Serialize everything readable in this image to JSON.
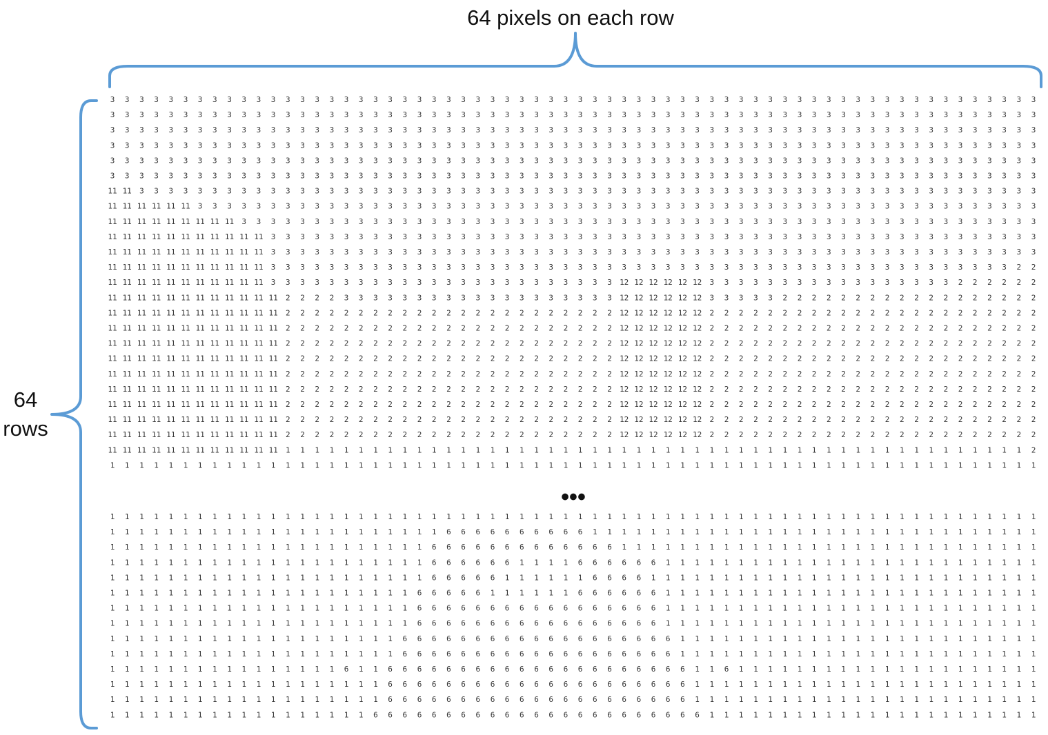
{
  "labels": {
    "top": "64 pixels on each row",
    "left_line1": "64",
    "left_line2": "rows",
    "ellipsis": "•••"
  },
  "colors": {
    "brace": "#5b9bd5",
    "text": "#111111",
    "digits": "#333333"
  },
  "matrix": {
    "top_rows": [
      "3 3 3 3 3 3 3 3 3 3 3 3 3 3 3 3 3 3 3 3 3 3 3 3 3 3 3 3 3 3 3 3 3 3 3 3 3 3 3 3 3 3 3 3 3 3 3 3 3 3 3 3 3 3 3 3 3 3 3 3 3 3 3 3",
      "3 3 3 3 3 3 3 3 3 3 3 3 3 3 3 3 3 3 3 3 3 3 3 3 3 3 3 3 3 3 3 3 3 3 3 3 3 3 3 3 3 3 3 3 3 3 3 3 3 3 3 3 3 3 3 3 3 3 3 3 3 3 3 3",
      "3 3 3 3 3 3 3 3 3 3 3 3 3 3 3 3 3 3 3 3 3 3 3 3 3 3 3 3 3 3 3 3 3 3 3 3 3 3 3 3 3 3 3 3 3 3 3 3 3 3 3 3 3 3 3 3 3 3 3 3 3 3 3 3",
      "3 3 3 3 3 3 3 3 3 3 3 3 3 3 3 3 3 3 3 3 3 3 3 3 3 3 3 3 3 3 3 3 3 3 3 3 3 3 3 3 3 3 3 3 3 3 3 3 3 3 3 3 3 3 3 3 3 3 3 3 3 3 3 3",
      "3 3 3 3 3 3 3 3 3 3 3 3 3 3 3 3 3 3 3 3 3 3 3 3 3 3 3 3 3 3 3 3 3 3 3 3 3 3 3 3 3 3 3 3 3 3 3 3 3 3 3 3 3 3 3 3 3 3 3 3 3 3 3 3",
      "3 3 3 3 3 3 3 3 3 3 3 3 3 3 3 3 3 3 3 3 3 3 3 3 3 3 3 3 3 3 3 3 3 3 3 3 3 3 3 3 3 3 3 3 3 3 3 3 3 3 3 3 3 3 3 3 3 3 3 3 3 3 3 3",
      "11 11 3 3 3 3 3 3 3 3 3 3 3 3 3 3 3 3 3 3 3 3 3 3 3 3 3 3 3 3 3 3 3 3 3 3 3 3 3 3 3 3 3 3 3 3 3 3 3 3 3 3 3 3 3 3 3 3 3 3 3 3 3 3",
      "11 11 11 11 11 11 3 3 3 3 3 3 3 3 3 3 3 3 3 3 3 3 3 3 3 3 3 3 3 3 3 3 3 3 3 3 3 3 3 3 3 3 3 3 3 3 3 3 3 3 3 3 3 3 3 3 3 3 3 3 3 3 3 3",
      "11 11 11 11 11 11 11 11 11 3 3 3 3 3 3 3 3 3 3 3 3 3 3 3 3 3 3 3 3 3 3 3 3 3 3 3 3 3 3 3 3 3 3 3 3 3 3 3 3 3 3 3 3 3 3 3 3 3 3 3 3 3 3 3",
      "11 11 11 11 11 11 11 11 11 11 11 3 3 3 3 3 3 3 3 3 3 3 3 3 3 3 3 3 3 3 3 3 3 3 3 3 3 3 3 3 3 3 3 3 3 3 3 3 3 3 3 3 3 3 3 3 3 3 3 3 3 3 3 3",
      "11 11 11 11 11 11 11 11 11 11 11 3 3 3 3 3 3 3 3 3 3 3 3 3 3 3 3 3 3 3 3 3 3 3 3 3 3 3 3 3 3 3 3 3 3 3 3 3 3 3 3 3 3 3 3 3 3 3 3 3 3 3 3 3",
      "11 11 11 11 11 11 11 11 11 11 11 3 3 3 3 3 3 3 3 3 3 3 3 3 3 3 3 3 3 3 3 3 3 3 3 3 3 3 3 3 3 3 3 3 3 3 3 3 3 3 3 3 3 3 3 3 3 3 3 3 3 3 2 2",
      "11 11 11 11 11 11 11 11 11 11 11 3 3 3 3 3 3 3 3 3 3 3 3 3 3 3 3 3 3 3 3 3 3 3 3 12 12 12 12 12 12 3 3 3 3 3 3 3 3 3 3 3 3 3 3 3 3 3 2 2 2 2 2 2",
      "11 11 11 11 11 11 11 11 11 11 11 11 2 2 2 2 3 3 3 3 3 3 3 3 3 3 3 3 3 3 3 3 3 3 3 12 12 12 12 12 12 3 3 3 3 3 2 2 2 2 2 2 2 2 2 2 2 2 2 2 2 2 2 2",
      "11 11 11 11 11 11 11 11 11 11 11 11 2 2 2 2 2 2 2 2 2 2 2 2 2 2 2 2 2 2 2 2 2 2 2 12 12 12 12 12 12 2 2 2 2 2 2 2 2 2 2 2 2 2 2 2 2 2 2 2 2 2 2 2",
      "11 11 11 11 11 11 11 11 11 11 11 11 2 2 2 2 2 2 2 2 2 2 2 2 2 2 2 2 2 2 2 2 2 2 2 12 12 12 12 12 12 2 2 2 2 2 2 2 2 2 2 2 2 2 2 2 2 2 2 2 2 2 2 2",
      "11 11 11 11 11 11 11 11 11 11 11 11 2 2 2 2 2 2 2 2 2 2 2 2 2 2 2 2 2 2 2 2 2 2 2 12 12 12 12 12 12 2 2 2 2 2 2 2 2 2 2 2 2 2 2 2 2 2 2 2 2 2 2 2",
      "11 11 11 11 11 11 11 11 11 11 11 11 2 2 2 2 2 2 2 2 2 2 2 2 2 2 2 2 2 2 2 2 2 2 2 12 12 12 12 12 12 2 2 2 2 2 2 2 2 2 2 2 2 2 2 2 2 2 2 2 2 2 2 2",
      "11 11 11 11 11 11 11 11 11 11 11 11 2 2 2 2 2 2 2 2 2 2 2 2 2 2 2 2 2 2 2 2 2 2 2 12 12 12 12 12 12 2 2 2 2 2 2 2 2 2 2 2 2 2 2 2 2 2 2 2 2 2 2 2",
      "11 11 11 11 11 11 11 11 11 11 11 11 2 2 2 2 2 2 2 2 2 2 2 2 2 2 2 2 2 2 2 2 2 2 2 12 12 12 12 12 12 2 2 2 2 2 2 2 2 2 2 2 2 2 2 2 2 2 2 2 2 2 2 2",
      "11 11 11 11 11 11 11 11 11 11 11 11 2 2 2 2 2 2 2 2 2 2 2 2 2 2 2 2 2 2 2 2 2 2 2 12 12 12 12 12 12 2 2 2 2 2 2 2 2 2 2 2 2 2 2 2 2 2 2 2 2 2 2 2",
      "11 11 11 11 11 11 11 11 11 11 11 11 2 2 2 2 2 2 2 2 2 2 2 2 2 2 2 2 2 2 2 2 2 2 2 12 12 12 12 12 12 2 2 2 2 2 2 2 2 2 2 2 2 2 2 2 2 2 2 2 2 2 2 2",
      "11 11 11 11 11 11 11 11 11 11 11 11 2 2 2 2 2 2 2 2 2 2 2 2 2 2 2 2 2 2 2 2 2 2 2 12 12 12 12 12 12 2 2 2 2 2 2 2 2 2 2 2 2 2 2 2 2 2 2 2 2 2 2 2",
      "11 11 11 11 11 11 11 11 11 11 11 11 1 1 1 1 1 1 1 1 1 1 1 1 1 1 1 1 1 1 1 1 1 1 1 1 1 1 1 1 1 1 1 1 1 1 1 1 1 1 1 1 1 1 1 1 1 1 1 1 1 1 1 2",
      "1 1 1 1 1 1 1 1 1 1 1 1 1 1 1 1 1 1 1 1 1 1 1 1 1 1 1 1 1 1 1 1 1 1 1 1 1 1 1 1 1 1 1 1 1 1 1 1 1 1 1 1 1 1 1 1 1 1 1 1 1 1 1 1"
    ],
    "bottom_rows": [
      "1 1 1 1 1 1 1 1 1 1 1 1 1 1 1 1 1 1 1 1 1 1 1 1 1 1 1 1 1 1 1 1 1 1 1 1 1 1 1 1 1 1 1 1 1 1 1 1 1 1 1 1 1 1 1 1 1 1 1 1 1 1 1 1",
      "1 1 1 1 1 1 1 1 1 1 1 1 1 1 1 1 1 1 1 1 1 1 1 6 6 6 6 6 6 6 6 6 6 1 1 1 1 1 1 1 1 1 1 1 1 1 1 1 1 1 1 1 1 1 1 1 1 1 1 1 1 1 1 1",
      "1 1 1 1 1 1 1 1 1 1 1 1 1 1 1 1 1 1 1 1 1 1 6 6 6 6 6 6 6 6 6 6 6 6 6 1 1 1 1 1 1 1 1 1 1 1 1 1 1 1 1 1 1 1 1 1 1 1 1 1 1 1 1 1",
      "1 1 1 1 1 1 1 1 1 1 1 1 1 1 1 1 1 1 1 1 1 1 6 6 6 6 6 6 1 1 1 1 6 6 6 6 6 6 1 1 1 1 1 1 1 1 1 1 1 1 1 1 1 1 1 1 1 1 1 1 1 1 1 1",
      "1 1 1 1 1 1 1 1 1 1 1 1 1 1 1 1 1 1 1 1 1 1 6 6 6 6 6 1 1 1 1 1 1 6 6 6 6 1 1 1 1 1 1 1 1 1 1 1 1 1 1 1 1 1 1 1 1 1 1 1 1 1 1 1",
      "1 1 1 1 1 1 1 1 1 1 1 1 1 1 1 1 1 1 1 1 1 6 6 6 6 6 1 1 1 1 1 1 6 6 6 6 6 6 1 1 1 1 1 1 1 1 1 1 1 1 1 1 1 1 1 1 1 1 1 1 1 1 1 1",
      "1 1 1 1 1 1 1 1 1 1 1 1 1 1 1 1 1 1 1 1 1 6 6 6 6 6 6 6 6 6 6 6 6 6 6 6 6 6 1 1 1 1 1 1 1 1 1 1 1 1 1 1 1 1 1 1 1 1 1 1 1 1 1 1",
      "1 1 1 1 1 1 1 1 1 1 1 1 1 1 1 1 1 1 1 1 1 6 6 6 6 6 6 6 6 6 6 6 6 6 6 6 6 6 1 1 1 1 1 1 1 1 1 1 1 1 1 1 1 1 1 1 1 1 1 1 1 1 1 1",
      "1 1 1 1 1 1 1 1 1 1 1 1 1 1 1 1 1 1 1 1 6 6 6 6 6 6 6 6 6 6 6 6 6 6 6 6 6 6 6 1 1 1 1 1 1 1 1 1 1 1 1 1 1 1 1 1 1 1 1 1 1 1 1 1",
      "1 1 1 1 1 1 1 1 1 1 1 1 1 1 1 1 1 1 1 1 6 6 6 6 6 6 6 6 6 6 6 6 6 6 6 6 6 6 6 1 1 1 1 1 1 1 1 1 1 1 1 1 1 1 1 1 1 1 1 1 1 1 1 1",
      "1 1 1 1 1 1 1 1 1 1 1 1 1 1 1 1 6 1 1 6 6 6 6 6 6 6 6 6 6 6 6 6 6 6 6 6 6 6 6 6 1 1 6 1 1 1 1 1 1 1 1 1 1 1 1 1 1 1 1 1 1 1 1 1",
      "1 1 1 1 1 1 1 1 1 1 1 1 1 1 1 1 1 1 1 6 6 6 6 6 6 6 6 6 6 6 6 6 6 6 6 6 6 6 6 6 1 1 1 1 1 1 1 1 1 1 1 1 1 1 1 1 1 1 1 1 1 1 1 1",
      "1 1 1 1 1 1 1 1 1 1 1 1 1 1 1 1 1 1 1 6 6 6 6 6 6 6 6 6 6 6 6 6 6 6 6 6 6 6 6 6 1 1 1 1 1 1 1 1 1 1 1 1 1 1 1 1 1 1 1 1 1 1 1 1",
      "1 1 1 1 1 1 1 1 1 1 1 1 1 1 1 1 1 1 6 6 6 6 6 6 6 6 6 6 6 6 6 6 6 6 6 6 6 6 6 6 6 1 1 1 1 1 1 1 1 1 1 1 1 1 1 1 1 1 1 1 1 1 1 1"
    ]
  }
}
